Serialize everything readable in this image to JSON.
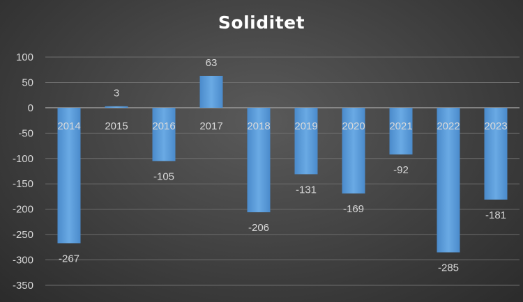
{
  "chart_data": {
    "type": "bar",
    "title": "Soliditet",
    "categories": [
      "2014",
      "2015",
      "2016",
      "2017",
      "2018",
      "2019",
      "2020",
      "2021",
      "2022",
      "2023"
    ],
    "values": [
      -267,
      3,
      -105,
      63,
      -206,
      -131,
      -169,
      -92,
      -285,
      -181
    ],
    "data_labels": [
      "-267",
      "3",
      "-105",
      "63",
      "-206",
      "-131",
      "-169",
      "-92",
      "-285",
      "-181"
    ],
    "ylim": [
      -350,
      100
    ],
    "yticks": [
      100,
      50,
      0,
      -50,
      -100,
      -150,
      -200,
      -250,
      -300,
      -350
    ],
    "ytick_labels": [
      "100",
      "50",
      "0",
      "-50",
      "-100",
      "-150",
      "-200",
      "-250",
      "-300",
      "-350"
    ],
    "grid": true,
    "legend": "none",
    "bar_color": "#5b9bd5",
    "text_color": "#d9d9d9",
    "grid_color": "#6e6e6e"
  }
}
